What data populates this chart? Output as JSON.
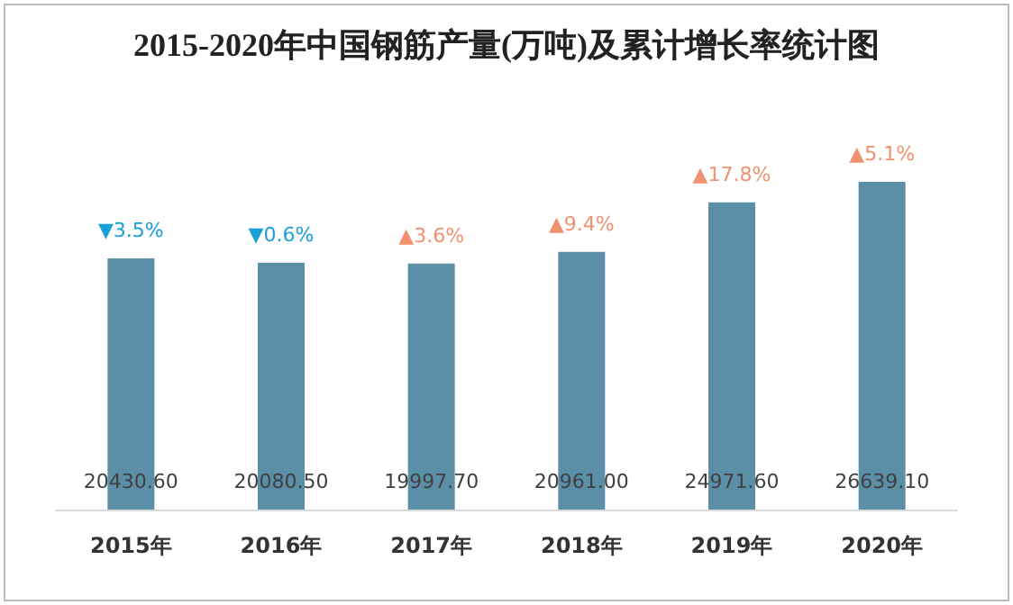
{
  "chart_data": {
    "type": "bar",
    "title": "2015-2020年中国钢筋产量(万吨)及累计增长率统计图",
    "categories": [
      "2015年",
      "2016年",
      "2017年",
      "2018年",
      "2019年",
      "2020年"
    ],
    "values": [
      20430.6,
      20080.5,
      19997.7,
      20961.0,
      24971.6,
      26639.1
    ],
    "value_labels": [
      "20430.60",
      "20080.50",
      "19997.70",
      "20961.00",
      "24971.60",
      "26639.10"
    ],
    "color": "#5b8fa8",
    "annotations": [
      {
        "text": "▼3.5%",
        "x": "2015年",
        "y": 20430.6
      },
      {
        "text": "▼0.6%",
        "x": "2016年",
        "y": 20080.5
      },
      {
        "text": "▲3.6%",
        "x": "2017年",
        "y": 19997.7
      },
      {
        "text": "▲9.4%",
        "x": "2018年",
        "y": 20961.0
      },
      {
        "text": "▲17.8%",
        "x": "2019年",
        "y": 24971.6
      },
      {
        "text": "▲5.1%",
        "x": "2020年",
        "y": 26639.1
      }
    ],
    "grid": false
  }
}
